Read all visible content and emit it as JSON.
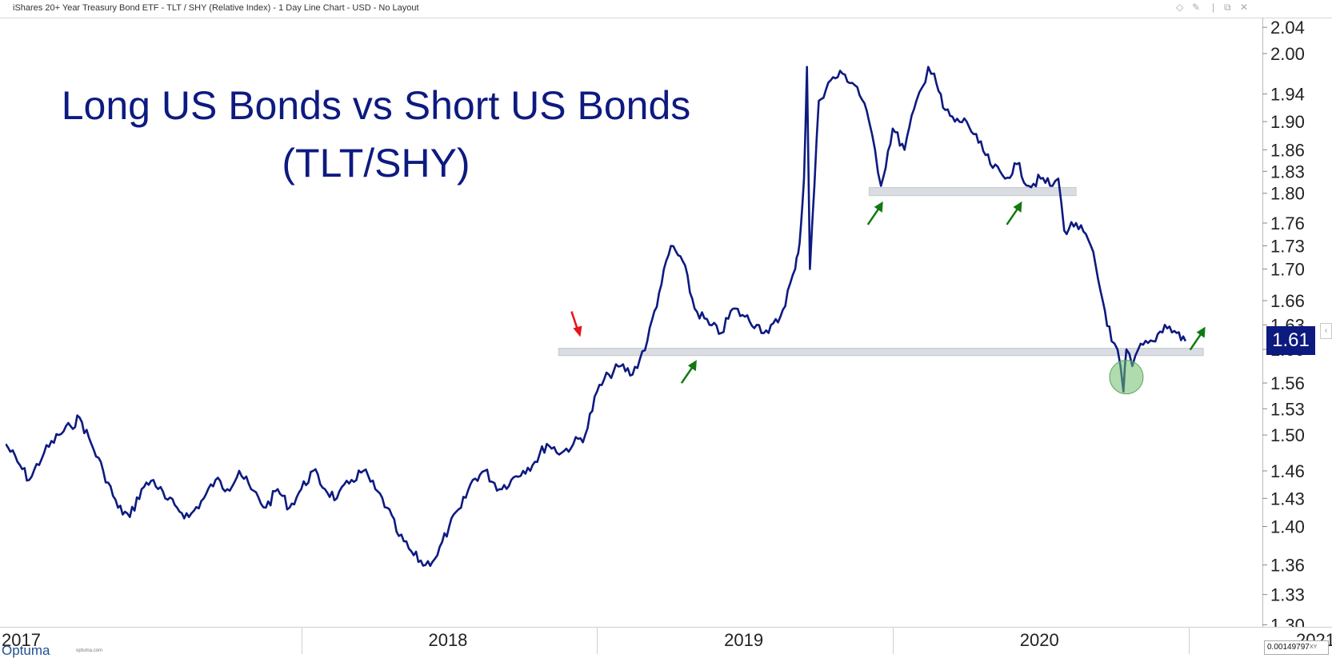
{
  "header": {
    "title": "iShares 20+ Year Treasury Bond ETF - TLT / SHY (Relative Index) - 1 Day Line Chart - USD - No Layout",
    "icons": [
      "diamond-icon",
      "pin-icon",
      "separator-icon",
      "restore-window-icon",
      "close-icon"
    ]
  },
  "brand": {
    "logo": "Optuma",
    "site": "optuma.com"
  },
  "last_value": "1.61",
  "scale_readout": "0.00149797",
  "scale_xy": "XY",
  "chart_data": {
    "type": "line",
    "title": "Long US Bonds vs Short US Bonds",
    "subtitle": "(TLT/SHY)",
    "xlabel": "",
    "ylabel": "",
    "x_tick_labels": [
      "2017",
      "2018",
      "2019",
      "2020",
      "2021"
    ],
    "y_tick_labels": [
      "1.30",
      "1.33",
      "1.36",
      "1.40",
      "1.43",
      "1.46",
      "1.50",
      "1.53",
      "1.56",
      "1.60",
      "1.63",
      "1.66",
      "1.70",
      "1.73",
      "1.76",
      "1.80",
      "1.83",
      "1.86",
      "1.90",
      "1.94",
      "2.00",
      "2.04"
    ],
    "y_scale": "log",
    "ylim": [
      1.298,
      2.055
    ],
    "xlim": [
      2017.0,
      2021.25
    ],
    "grid": false,
    "line_color": "#0d1a80",
    "series": [
      {
        "x": [
          2017.0,
          2017.04,
          2017.08,
          2017.13,
          2017.18,
          2017.22,
          2017.25,
          2017.29,
          2017.33,
          2017.38,
          2017.42,
          2017.46,
          2017.5,
          2017.54,
          2017.58,
          2017.62,
          2017.67,
          2017.71,
          2017.75,
          2017.79,
          2017.83,
          2017.88,
          2017.92,
          2017.96,
          2018.0,
          2018.04,
          2018.08,
          2018.12,
          2018.17,
          2018.21,
          2018.25,
          2018.29,
          2018.33,
          2018.38,
          2018.42,
          2018.46,
          2018.5,
          2018.54,
          2018.58,
          2018.62,
          2018.67,
          2018.71,
          2018.75,
          2018.79,
          2018.83,
          2018.88,
          2018.92,
          2018.96,
          2019.0,
          2019.04,
          2019.08,
          2019.12,
          2019.17,
          2019.21,
          2019.25,
          2019.29,
          2019.33,
          2019.38,
          2019.42,
          2019.46,
          2019.5,
          2019.54,
          2019.58,
          2019.62,
          2019.67,
          2019.68,
          2019.69,
          2019.7,
          2019.71,
          2019.72,
          2019.75,
          2019.79,
          2019.83,
          2019.88,
          2019.92,
          2019.94,
          2019.96,
          2020.0,
          2020.04,
          2020.08,
          2020.1,
          2020.12,
          2020.14,
          2020.17,
          2020.21,
          2020.25,
          2020.29,
          2020.33,
          2020.38,
          2020.42,
          2020.46,
          2020.5,
          2020.54,
          2020.56,
          2020.58,
          2020.62,
          2020.67,
          2020.71,
          2020.74,
          2020.76,
          2020.78,
          2020.79,
          2020.81,
          2020.83,
          2020.88,
          2020.92,
          2020.96,
          2020.99
        ],
        "y": [
          1.49,
          1.47,
          1.45,
          1.48,
          1.5,
          1.51,
          1.52,
          1.49,
          1.46,
          1.42,
          1.41,
          1.44,
          1.45,
          1.43,
          1.42,
          1.41,
          1.43,
          1.45,
          1.44,
          1.46,
          1.44,
          1.42,
          1.44,
          1.42,
          1.44,
          1.46,
          1.44,
          1.43,
          1.45,
          1.46,
          1.44,
          1.42,
          1.39,
          1.37,
          1.36,
          1.37,
          1.4,
          1.42,
          1.45,
          1.46,
          1.44,
          1.45,
          1.46,
          1.47,
          1.49,
          1.48,
          1.49,
          1.5,
          1.55,
          1.57,
          1.58,
          1.57,
          1.61,
          1.67,
          1.73,
          1.71,
          1.65,
          1.63,
          1.62,
          1.65,
          1.64,
          1.63,
          1.62,
          1.64,
          1.7,
          1.72,
          1.76,
          1.82,
          1.98,
          1.7,
          1.93,
          1.96,
          1.97,
          1.95,
          1.9,
          1.86,
          1.81,
          1.89,
          1.86,
          1.93,
          1.95,
          1.98,
          1.97,
          1.92,
          1.9,
          1.9,
          1.87,
          1.84,
          1.82,
          1.84,
          1.81,
          1.82,
          1.81,
          1.82,
          1.75,
          1.76,
          1.73,
          1.66,
          1.61,
          1.6,
          1.55,
          1.6,
          1.58,
          1.6,
          1.61,
          1.63,
          1.62,
          1.61
        ]
      }
    ],
    "annotations": [
      {
        "type": "support-band",
        "label": "",
        "x": [
          2018.87,
          2021.05
        ],
        "y": [
          1.5926,
          1.6014
        ],
        "color": "#d9dde2"
      },
      {
        "type": "support-band",
        "label": "",
        "x": [
          2019.92,
          2020.62
        ],
        "y": [
          1.7968,
          1.8078
        ],
        "color": "#d9dde2"
      },
      {
        "type": "arrow",
        "direction": "down",
        "color": "#e8141b",
        "x": 2018.93,
        "y": 1.617
      },
      {
        "type": "arrow",
        "direction": "up",
        "color": "#107a10",
        "x": 2019.31,
        "y": 1.575
      },
      {
        "type": "arrow",
        "direction": "up",
        "color": "#107a10",
        "x": 2019.94,
        "y": 1.775
      },
      {
        "type": "arrow",
        "direction": "up",
        "color": "#107a10",
        "x": 2020.41,
        "y": 1.775
      },
      {
        "type": "arrow",
        "direction": "up",
        "color": "#107a10",
        "x": 2021.03,
        "y": 1.615
      },
      {
        "type": "circle",
        "color": "#6ebd6e",
        "x": 2020.79,
        "y": 1.567
      }
    ]
  }
}
